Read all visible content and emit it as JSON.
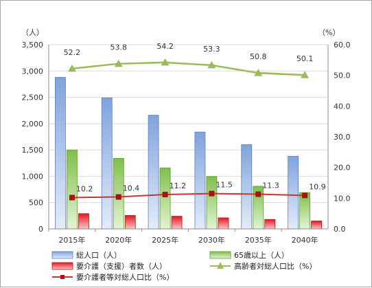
{
  "chart_data": {
    "type": "bar",
    "categories": [
      "2015年",
      "2020年",
      "2025年",
      "2030年",
      "2035年",
      "2040年"
    ],
    "y_left_unit": "（人）",
    "y_right_unit": "（%）",
    "ylim_left": [
      0,
      3500
    ],
    "ylim_right": [
      0,
      60
    ],
    "y_left_ticks": [
      "0",
      "500",
      "1,000",
      "1,500",
      "2,000",
      "2,500",
      "3,000",
      "3,500"
    ],
    "y_right_ticks": [
      "0.0",
      "10.0",
      "20.0",
      "30.0",
      "40.0",
      "50.0",
      "60.0"
    ],
    "series": [
      {
        "name": "総人口(人)",
        "kind": "bar",
        "axis": "left",
        "color": "#9db9e6",
        "values": [
          2880,
          2490,
          2160,
          1840,
          1600,
          1380
        ]
      },
      {
        "name": "65歳以上(人)",
        "kind": "bar",
        "axis": "left",
        "color": "#9bd26a",
        "values": [
          1500,
          1340,
          1160,
          995,
          810,
          690
        ]
      },
      {
        "name": "要介護(支援)者数(人)",
        "kind": "bar",
        "axis": "left",
        "color": "#e8262f",
        "values": [
          290,
          255,
          240,
          210,
          180,
          150
        ]
      },
      {
        "name": "高齢者対総人口比(%)",
        "kind": "line",
        "axis": "right",
        "color": "#9bbb59",
        "values": [
          52.2,
          53.8,
          54.2,
          53.3,
          50.8,
          50.1
        ],
        "labels": [
          "52.2",
          "53.8",
          "54.2",
          "53.3",
          "50.8",
          "50.1"
        ]
      },
      {
        "name": "要介護者等対総人口比(%)",
        "kind": "line",
        "axis": "right",
        "color": "#c0392b",
        "values": [
          10.2,
          10.4,
          11.2,
          11.5,
          11.3,
          10.9
        ],
        "labels": [
          "10.2",
          "10.4",
          "11.2",
          "11.5",
          "11.3",
          "10.9"
        ]
      }
    ],
    "legend": [
      {
        "label": "総人口（人）"
      },
      {
        "label": "65歳以上（人）"
      },
      {
        "label": "要介護（支援）者数（人）"
      },
      {
        "label": "高齢者対総人口比（%）"
      },
      {
        "label": "要介護者等対総人口比（%）"
      }
    ],
    "legend_position": "bottom",
    "grid": true
  }
}
